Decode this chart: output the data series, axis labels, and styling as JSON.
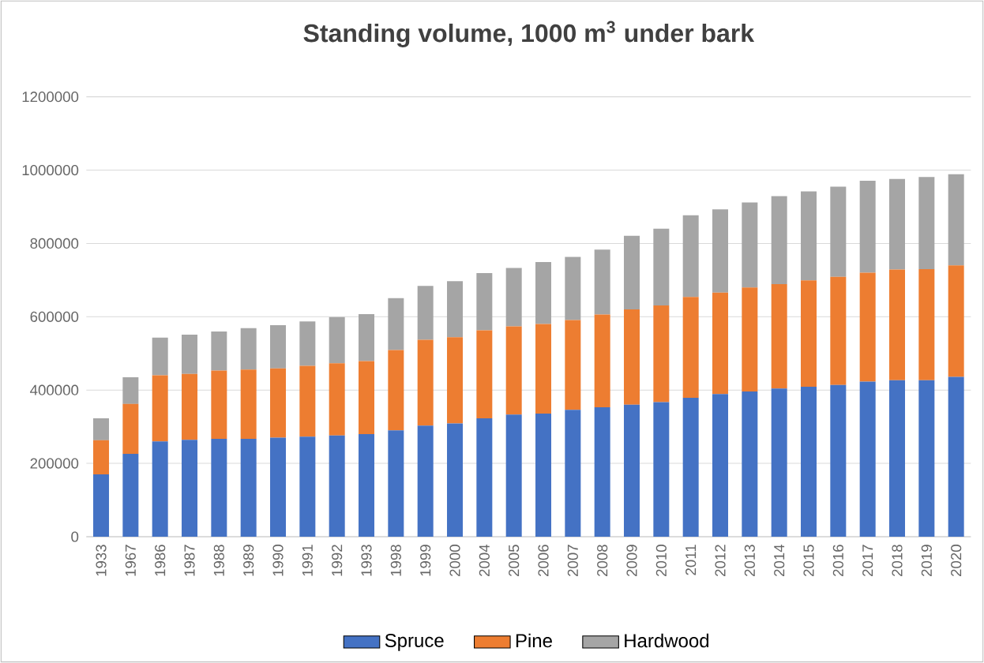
{
  "chart_data": {
    "type": "bar",
    "title": "Standing volume, 1000 m$^{3}$ under bark",
    "stacked": true,
    "categories": [
      "1933",
      "1967",
      "1986",
      "1987",
      "1988",
      "1989",
      "1990",
      "1991",
      "1992",
      "1993",
      "1998",
      "1999",
      "2000",
      "2004",
      "2005",
      "2006",
      "2007",
      "2008",
      "2009",
      "2010",
      "2011",
      "2012",
      "2013",
      "2014",
      "2015",
      "2016",
      "2017",
      "2018",
      "2019",
      "2020"
    ],
    "series": [
      {
        "name": "Spruce",
        "color": "#4472c4",
        "values": [
          170000,
          226000,
          260000,
          264000,
          267000,
          267000,
          270000,
          273000,
          276000,
          280000,
          290000,
          303000,
          309000,
          323000,
          333000,
          336000,
          346000,
          353000,
          360000,
          367000,
          379000,
          389000,
          396000,
          404000,
          409000,
          414000,
          423000,
          427000,
          427000,
          436000
        ]
      },
      {
        "name": "Pine",
        "color": "#ed7d31",
        "values": [
          93000,
          136000,
          180000,
          180000,
          186000,
          189000,
          189000,
          193000,
          197000,
          199000,
          219000,
          234000,
          235000,
          240000,
          241000,
          244000,
          245000,
          253000,
          260000,
          264000,
          275000,
          277000,
          284000,
          285000,
          290000,
          295000,
          297000,
          302000,
          303000,
          304000
        ]
      },
      {
        "name": "Hardwood",
        "color": "#a5a5a5",
        "values": [
          60000,
          73000,
          103000,
          107000,
          107000,
          113000,
          118000,
          121000,
          126000,
          128000,
          142000,
          147000,
          153000,
          156000,
          159000,
          169000,
          172000,
          177000,
          201000,
          209000,
          223000,
          227000,
          232000,
          240000,
          243000,
          246000,
          251000,
          247000,
          251000,
          249000
        ]
      }
    ],
    "ylim": [
      0,
      1200000
    ],
    "yticks": [
      0,
      200000,
      400000,
      600000,
      800000,
      1000000,
      1200000
    ],
    "grid": "y",
    "legend": "bottom"
  }
}
